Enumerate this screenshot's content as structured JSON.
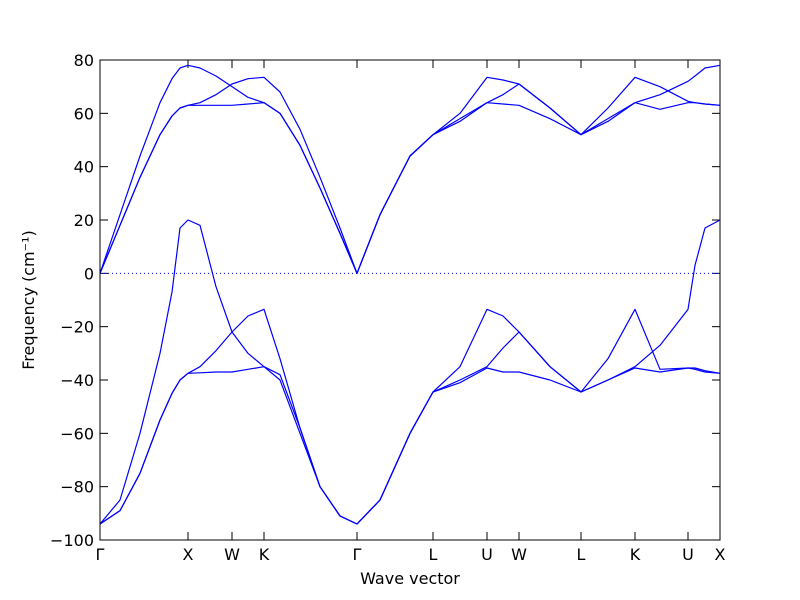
{
  "chart_data": {
    "type": "line",
    "xlabel": "Wave vector",
    "ylabel": "Frequency (cm⁻¹)",
    "x": [
      0,
      20,
      40,
      60,
      72,
      80,
      88,
      100,
      116,
      132,
      148,
      164,
      180,
      200,
      220,
      240,
      257,
      280,
      310,
      333,
      360,
      387,
      403,
      419,
      450,
      481,
      508,
      535,
      560,
      588,
      595,
      605,
      620
    ],
    "xlim": [
      0,
      620
    ],
    "xticks": [
      {
        "value": 0,
        "label": "Γ"
      },
      {
        "value": 88,
        "label": "X"
      },
      {
        "value": 132,
        "label": "W"
      },
      {
        "value": 164,
        "label": "K"
      },
      {
        "value": 257,
        "label": "Γ"
      },
      {
        "value": 333,
        "label": "L"
      },
      {
        "value": 387,
        "label": "U"
      },
      {
        "value": 419,
        "label": "W"
      },
      {
        "value": 481,
        "label": "L"
      },
      {
        "value": 535,
        "label": "K"
      },
      {
        "value": 588,
        "label": "U"
      },
      {
        "value": 620,
        "label": "X"
      }
    ],
    "ylim": [
      -100,
      80
    ],
    "yticks": [
      {
        "value": -100,
        "label": "−100"
      },
      {
        "value": -80,
        "label": "−80"
      },
      {
        "value": -60,
        "label": "−60"
      },
      {
        "value": -40,
        "label": "−40"
      },
      {
        "value": -20,
        "label": "−20"
      },
      0,
      20,
      40,
      60,
      80
    ],
    "hline": 0,
    "series": [
      {
        "color": "#0000ff",
        "values": [
          0,
          18,
          36,
          52,
          59,
          62,
          63,
          63,
          63,
          63,
          63.5,
          64,
          60,
          48,
          32,
          15,
          0,
          22,
          44,
          52,
          57,
          64,
          63.5,
          63,
          58,
          52,
          57,
          64,
          61.5,
          64,
          64,
          63.5,
          63
        ]
      },
      {
        "color": "#0000ff",
        "values": [
          0,
          18,
          36,
          52,
          59,
          62,
          63,
          64,
          67,
          71,
          73,
          73.5,
          68,
          54,
          36,
          17,
          0,
          22,
          44,
          52,
          58,
          64,
          67,
          71,
          62,
          52,
          58,
          64,
          67,
          72,
          74,
          77,
          78
        ]
      },
      {
        "color": "#0000ff",
        "values": [
          0,
          22,
          44,
          64,
          73,
          77,
          78,
          77,
          74,
          70,
          66,
          64,
          60,
          48,
          32,
          15,
          0,
          22,
          44,
          52,
          60,
          73.5,
          72.5,
          71,
          62,
          52,
          62,
          73.5,
          70,
          64.5,
          64,
          63.5,
          63
        ]
      },
      {
        "color": "#0000ff",
        "values": [
          -94,
          -89,
          -75,
          -55,
          -45,
          -40,
          -37.5,
          -37.3,
          -37,
          -37,
          -36,
          -35,
          -40,
          -60,
          -80,
          -91,
          -94,
          -85,
          -60,
          -44.5,
          -41,
          -35.5,
          -37,
          -37,
          -40,
          -44.5,
          -40,
          -35.5,
          -37,
          -35.5,
          -36,
          -37,
          -37.5
        ]
      },
      {
        "color": "#0000ff",
        "values": [
          -94,
          -89,
          -75,
          -55,
          -45,
          -40,
          -37.5,
          -35,
          -29,
          -22,
          -16,
          -13.5,
          -32,
          -58,
          -80,
          -91,
          -94,
          -85,
          -60,
          -44.5,
          -35,
          -13.5,
          -16,
          -22,
          -35,
          -44.5,
          -32,
          -13.5,
          -36,
          -35.5,
          -35.5,
          -36.5,
          -37.5
        ]
      },
      {
        "color": "#0000ff",
        "values": [
          -94,
          -85,
          -60,
          -30,
          -7,
          17,
          20,
          18,
          -5,
          -22,
          -30,
          -35,
          -38,
          -58,
          -80,
          -91,
          -94,
          -85,
          -60,
          -44.5,
          -40,
          -35,
          -28,
          -22,
          -35,
          -44.5,
          -40,
          -35,
          -27,
          -13.5,
          3,
          17,
          20
        ]
      }
    ]
  }
}
